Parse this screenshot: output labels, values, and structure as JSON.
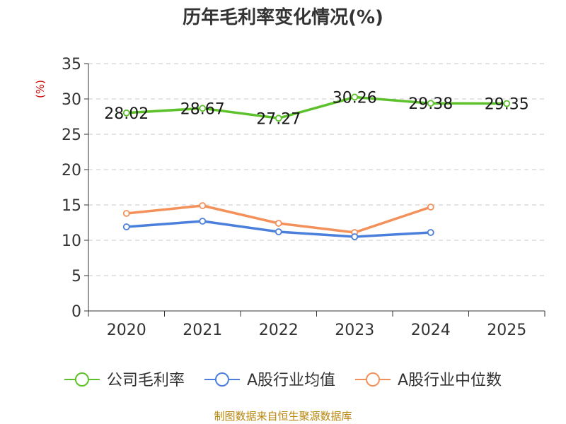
{
  "chart_data": {
    "type": "line",
    "title": "历年毛利率变化情况(%)",
    "ylabel": "(%)",
    "xlabel": "",
    "categories": [
      "2020",
      "2021",
      "2022",
      "2023",
      "2024",
      "2025"
    ],
    "ylim": [
      0,
      35
    ],
    "yticks": [
      0,
      5,
      10,
      15,
      20,
      25,
      30,
      35
    ],
    "grid": true,
    "legend_position": "bottom",
    "series": [
      {
        "name": "公司毛利率",
        "color": "#5cc12a",
        "values": [
          28.02,
          28.67,
          27.27,
          30.26,
          29.38,
          29.35
        ],
        "show_labels": true
      },
      {
        "name": "A股行业均值",
        "color": "#4a7fdb",
        "values": [
          11.9,
          12.7,
          11.2,
          10.5,
          11.1,
          null
        ],
        "show_labels": false
      },
      {
        "name": "A股行业中位数",
        "color": "#f4905a",
        "values": [
          13.8,
          14.9,
          12.4,
          11.1,
          14.7,
          null
        ],
        "show_labels": false
      }
    ]
  },
  "source": "制图数据来自恒生聚源数据库"
}
